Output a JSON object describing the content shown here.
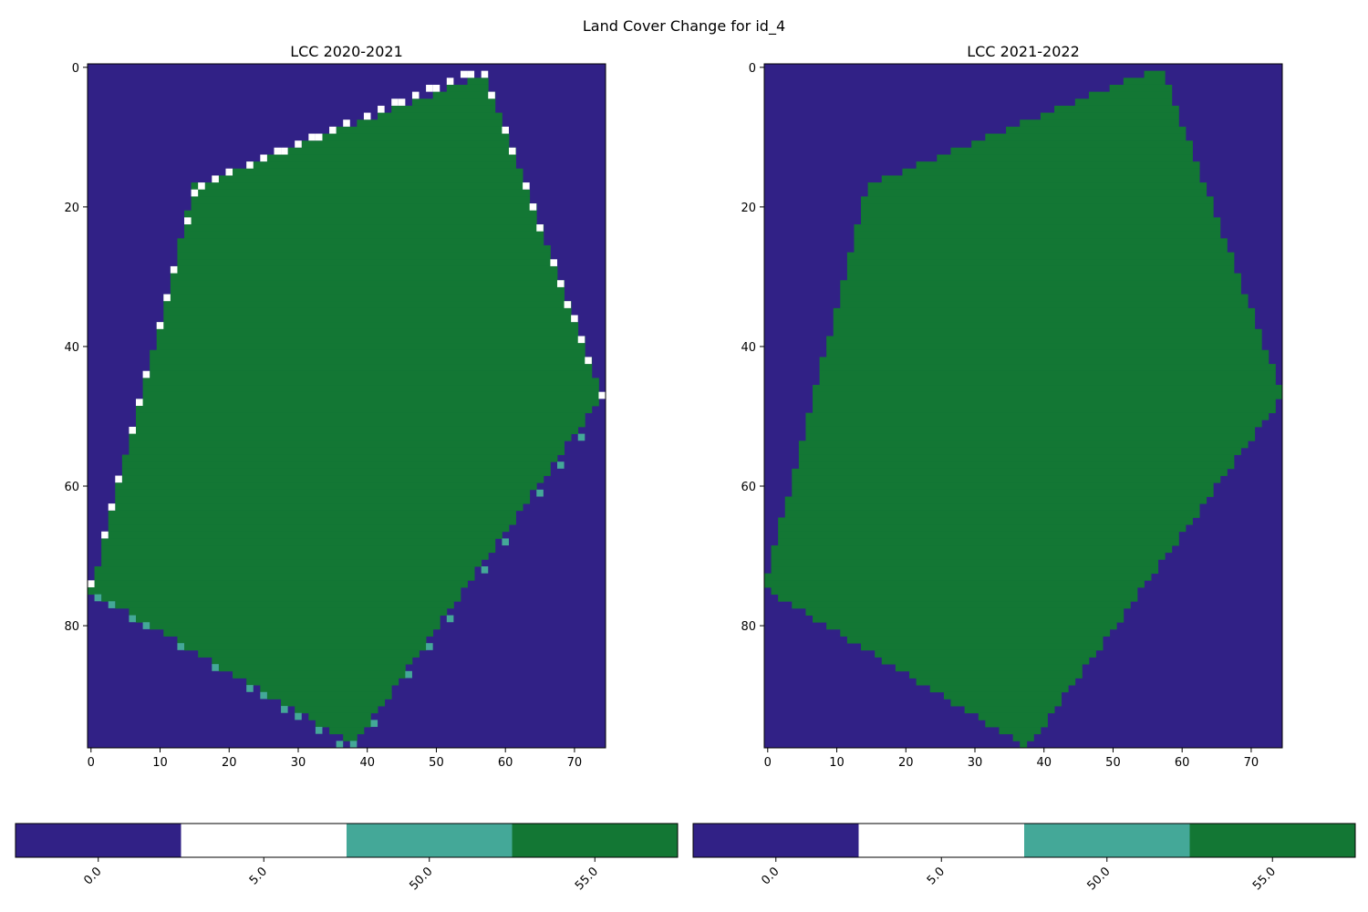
{
  "figure": {
    "suptitle": "Land Cover Change for id_4"
  },
  "palette": {
    "0.0": "#312186",
    "5.0": "#ffffff",
    "50.0": "#44a898",
    "55.0": "#137734"
  },
  "chart_data": [
    {
      "type": "heatmap",
      "title": "LCC 2020-2021",
      "grid_cols": 75,
      "grid_rows": 98,
      "xlim": [
        -0.5,
        74.5
      ],
      "ylim": [
        97.5,
        -0.5
      ],
      "xticks": [
        0,
        10,
        20,
        30,
        40,
        50,
        60,
        70
      ],
      "yticks": [
        0,
        20,
        40,
        60,
        80
      ],
      "background_value": 0.0,
      "polygon_value": 55.0,
      "polygon_vertices": [
        [
          57,
          1
        ],
        [
          74,
          47
        ],
        [
          38,
          97
        ],
        [
          0,
          75
        ],
        [
          15,
          17
        ]
      ],
      "edge_cells": [
        {
          "value": 5.0,
          "cells": [
            [
              54,
              1
            ],
            [
              55,
              1
            ],
            [
              57,
              1
            ],
            [
              52,
              2
            ],
            [
              50,
              3
            ],
            [
              49,
              3
            ],
            [
              47,
              4
            ],
            [
              45,
              5
            ],
            [
              44,
              5
            ],
            [
              42,
              6
            ],
            [
              40,
              7
            ],
            [
              37,
              8
            ],
            [
              35,
              9
            ],
            [
              33,
              10
            ],
            [
              32,
              10
            ],
            [
              30,
              11
            ],
            [
              28,
              12
            ],
            [
              27,
              12
            ],
            [
              25,
              13
            ],
            [
              23,
              14
            ],
            [
              20,
              15
            ],
            [
              18,
              16
            ],
            [
              16,
              17
            ],
            [
              15,
              18
            ],
            [
              14,
              22
            ],
            [
              12,
              29
            ],
            [
              11,
              33
            ],
            [
              10,
              37
            ],
            [
              8,
              44
            ],
            [
              7,
              48
            ],
            [
              6,
              52
            ],
            [
              4,
              59
            ],
            [
              3,
              63
            ],
            [
              2,
              67
            ],
            [
              0,
              74
            ],
            [
              58,
              4
            ],
            [
              60,
              9
            ],
            [
              61,
              12
            ],
            [
              63,
              17
            ],
            [
              64,
              20
            ],
            [
              65,
              23
            ],
            [
              67,
              28
            ],
            [
              68,
              31
            ],
            [
              69,
              34
            ],
            [
              70,
              36
            ],
            [
              71,
              39
            ],
            [
              72,
              42
            ],
            [
              74,
              47
            ]
          ]
        },
        {
          "value": 50.0,
          "cells": [
            [
              1,
              76
            ],
            [
              3,
              77
            ],
            [
              6,
              79
            ],
            [
              8,
              80
            ],
            [
              13,
              83
            ],
            [
              18,
              86
            ],
            [
              23,
              89
            ],
            [
              25,
              90
            ],
            [
              28,
              92
            ],
            [
              30,
              93
            ],
            [
              33,
              95
            ],
            [
              36,
              97
            ],
            [
              38,
              98
            ],
            [
              41,
              94
            ],
            [
              46,
              87
            ],
            [
              49,
              83
            ],
            [
              52,
              79
            ],
            [
              57,
              72
            ],
            [
              60,
              68
            ],
            [
              65,
              61
            ],
            [
              68,
              57
            ],
            [
              71,
              53
            ]
          ]
        }
      ],
      "colorbar": {
        "labels": [
          "0.0",
          "5.0",
          "50.0",
          "55.0"
        ],
        "values": [
          0.0,
          5.0,
          50.0,
          55.0
        ]
      }
    },
    {
      "type": "heatmap",
      "title": "LCC 2021-2022",
      "grid_cols": 75,
      "grid_rows": 98,
      "xlim": [
        -0.5,
        74.5
      ],
      "ylim": [
        97.5,
        -0.5
      ],
      "xticks": [
        0,
        10,
        20,
        30,
        40,
        50,
        60,
        70
      ],
      "yticks": [
        0,
        20,
        40,
        60,
        80
      ],
      "background_value": 0.0,
      "polygon_value": 55.0,
      "polygon_vertices": [
        [
          57,
          0
        ],
        [
          74.5,
          47
        ],
        [
          37.5,
          97.5
        ],
        [
          -0.5,
          74.5
        ],
        [
          14.5,
          17
        ]
      ],
      "edge_cells": [],
      "colorbar": {
        "labels": [
          "0.0",
          "5.0",
          "50.0",
          "55.0"
        ],
        "values": [
          0.0,
          5.0,
          50.0,
          55.0
        ]
      }
    }
  ]
}
